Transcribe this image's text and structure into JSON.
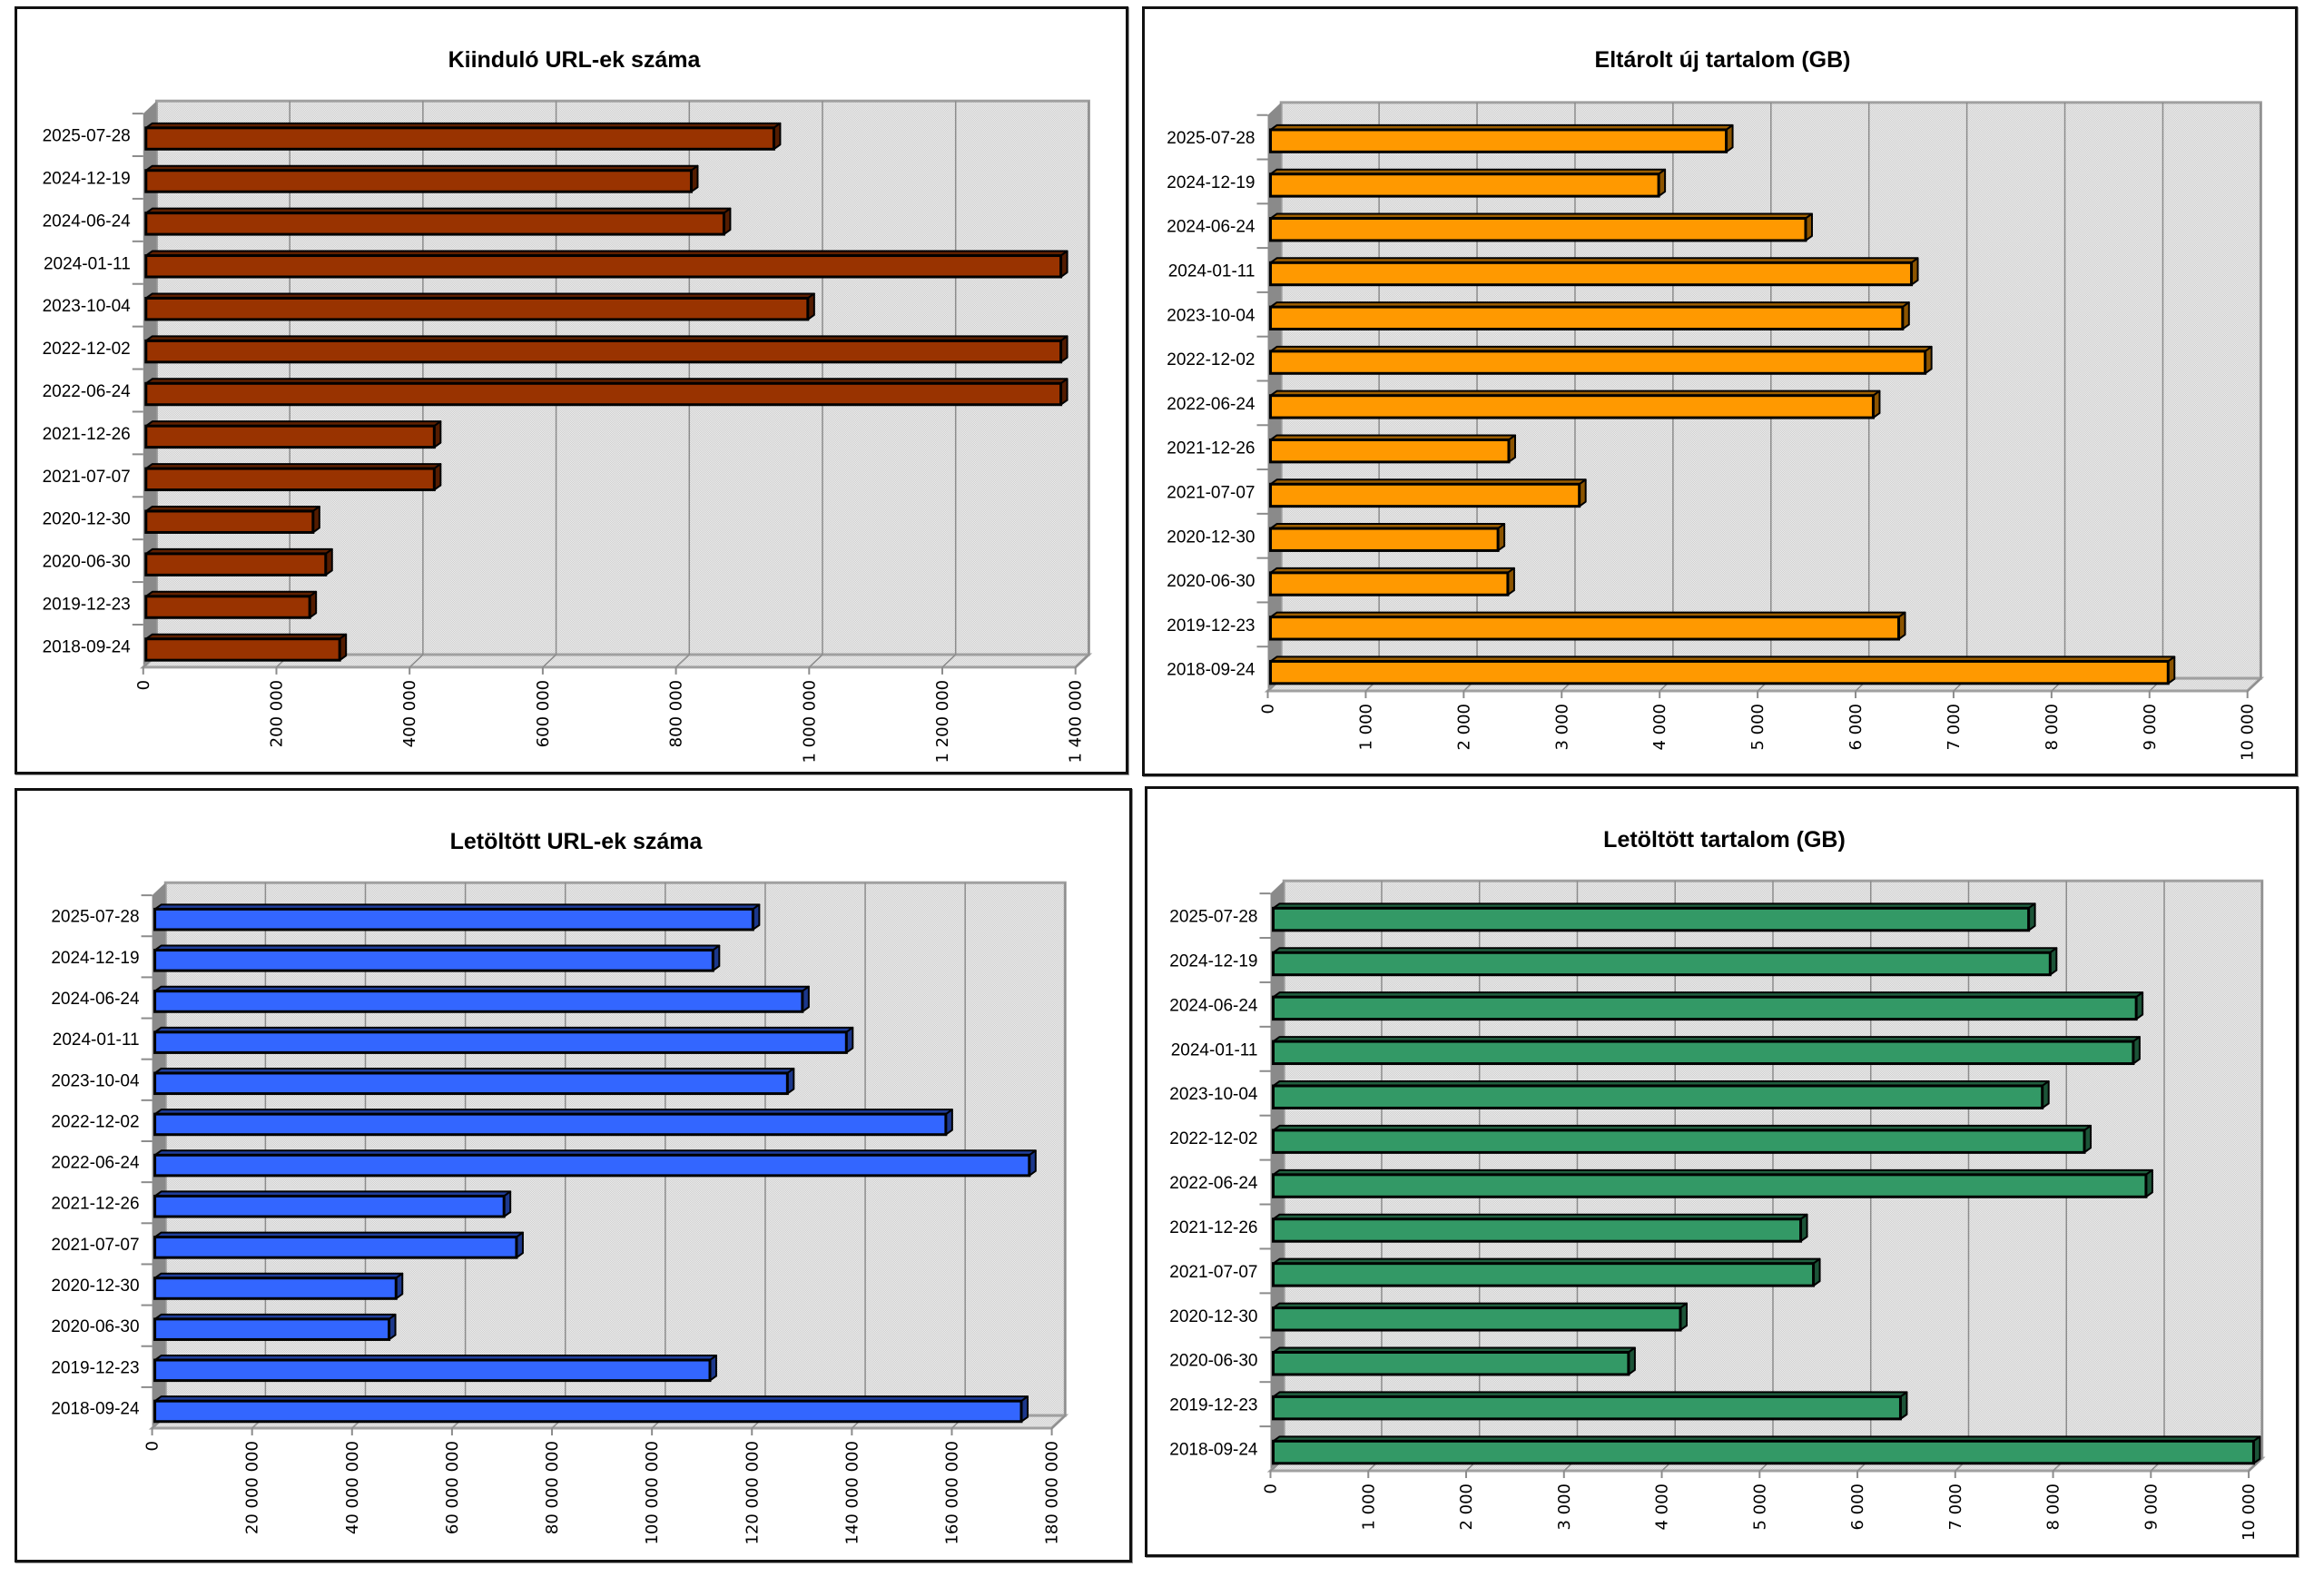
{
  "page": {
    "description": "Four 3D horizontal bar charts comparing crawl statistics per harvest date"
  },
  "colors": {
    "chart1": "#993300",
    "chart2": "#FF9900",
    "chart3": "#3366FF",
    "chart4": "#339966",
    "plot_background": "#e2e2e2",
    "gridline": "#8c8c8c",
    "frame": "#111111"
  },
  "chart_data": [
    {
      "id": "kiindulo-url",
      "type": "bar",
      "orientation": "horizontal",
      "style": "3d",
      "title": "Kiinduló URL-ek száma",
      "xlabel": "",
      "ylabel": "",
      "categories": [
        "2025-07-28",
        "2024-12-19",
        "2024-06-24",
        "2024-01-11",
        "2023-10-04",
        "2022-12-02",
        "2022-06-24",
        "2021-12-26",
        "2021-07-07",
        "2020-12-30",
        "2020-06-30",
        "2019-12-23",
        "2018-09-24"
      ],
      "values": [
        947000,
        823000,
        872000,
        1378000,
        998000,
        1378000,
        1378000,
        437000,
        437000,
        255000,
        274000,
        250000,
        295000
      ],
      "xlim": [
        0,
        1400000
      ],
      "xticks": [
        0,
        200000,
        400000,
        600000,
        800000,
        1000000,
        1200000,
        1400000
      ],
      "xtick_labels": [
        "0",
        "200 000",
        "400 000",
        "600 000",
        "800 000",
        "1 000 000",
        "1 200 000",
        "1 400 000"
      ],
      "grid": true,
      "legend": "none",
      "color": "#993300"
    },
    {
      "id": "eltarolt-uj-tartalom",
      "type": "bar",
      "orientation": "horizontal",
      "style": "3d",
      "title": "Eltárolt új tartalom  (GB)",
      "xlabel": "",
      "ylabel": "",
      "categories": [
        "2025-07-28",
        "2024-12-19",
        "2024-06-24",
        "2024-01-11",
        "2023-10-04",
        "2022-12-02",
        "2022-06-24",
        "2021-12-26",
        "2021-07-07",
        "2020-12-30",
        "2020-06-30",
        "2019-12-23",
        "2018-09-24"
      ],
      "values": [
        4680,
        3990,
        5490,
        6570,
        6480,
        6710,
        6180,
        2460,
        3180,
        2350,
        2450,
        6440,
        9190
      ],
      "xlim": [
        0,
        10000
      ],
      "xticks": [
        0,
        1000,
        2000,
        3000,
        4000,
        5000,
        6000,
        7000,
        8000,
        9000,
        10000
      ],
      "xtick_labels": [
        "0",
        "1 000",
        "2 000",
        "3 000",
        "4 000",
        "5 000",
        "6 000",
        "7 000",
        "8 000",
        "9 000",
        "10 000"
      ],
      "grid": true,
      "legend": "none",
      "color": "#FF9900"
    },
    {
      "id": "letoltott-url",
      "type": "bar",
      "orientation": "horizontal",
      "style": "3d",
      "title": "Letöltött URL-ek száma",
      "xlabel": "",
      "ylabel": "",
      "categories": [
        "2025-07-28",
        "2024-12-19",
        "2024-06-24",
        "2024-01-11",
        "2023-10-04",
        "2022-12-02",
        "2022-06-24",
        "2021-12-26",
        "2021-07-07",
        "2020-12-30",
        "2020-06-30",
        "2019-12-23",
        "2018-09-24"
      ],
      "values": [
        120200000,
        112200000,
        130100000,
        138900000,
        127100000,
        158800000,
        175500000,
        70400000,
        72900000,
        48800000,
        47400000,
        111600000,
        173900000
      ],
      "xlim": [
        0,
        180000000
      ],
      "xticks": [
        0,
        20000000,
        40000000,
        60000000,
        80000000,
        100000000,
        120000000,
        140000000,
        160000000,
        180000000
      ],
      "xtick_labels": [
        "0",
        "20 000 000",
        "40 000 000",
        "60 000 000",
        "80 000 000",
        "100 000 000",
        "120 000 000",
        "140 000 000",
        "160 000 000",
        "180 000 000"
      ],
      "grid": true,
      "legend": "none",
      "color": "#3366FF"
    },
    {
      "id": "letoltott-tartalom",
      "type": "bar",
      "orientation": "horizontal",
      "style": "3d",
      "title": "Letöltött tartalom (GB)",
      "xlabel": "",
      "ylabel": "",
      "categories": [
        "2025-07-28",
        "2024-12-19",
        "2024-06-24",
        "2024-01-11",
        "2023-10-04",
        "2022-12-02",
        "2022-06-24",
        "2021-12-26",
        "2021-07-07",
        "2020-12-30",
        "2020-06-30",
        "2019-12-23",
        "2018-09-24"
      ],
      "values": [
        7750,
        7970,
        8850,
        8820,
        7890,
        8320,
        8950,
        5420,
        5550,
        4190,
        3660,
        6440,
        10050
      ],
      "xlim": [
        0,
        10000
      ],
      "xticks": [
        0,
        1000,
        2000,
        3000,
        4000,
        5000,
        6000,
        7000,
        8000,
        9000,
        10000
      ],
      "xtick_labels": [
        "0",
        "1 000",
        "2 000",
        "3 000",
        "4 000",
        "5 000",
        "6 000",
        "7 000",
        "8 000",
        "9 000",
        "10 000"
      ],
      "grid": true,
      "legend": "none",
      "color": "#339966"
    }
  ]
}
